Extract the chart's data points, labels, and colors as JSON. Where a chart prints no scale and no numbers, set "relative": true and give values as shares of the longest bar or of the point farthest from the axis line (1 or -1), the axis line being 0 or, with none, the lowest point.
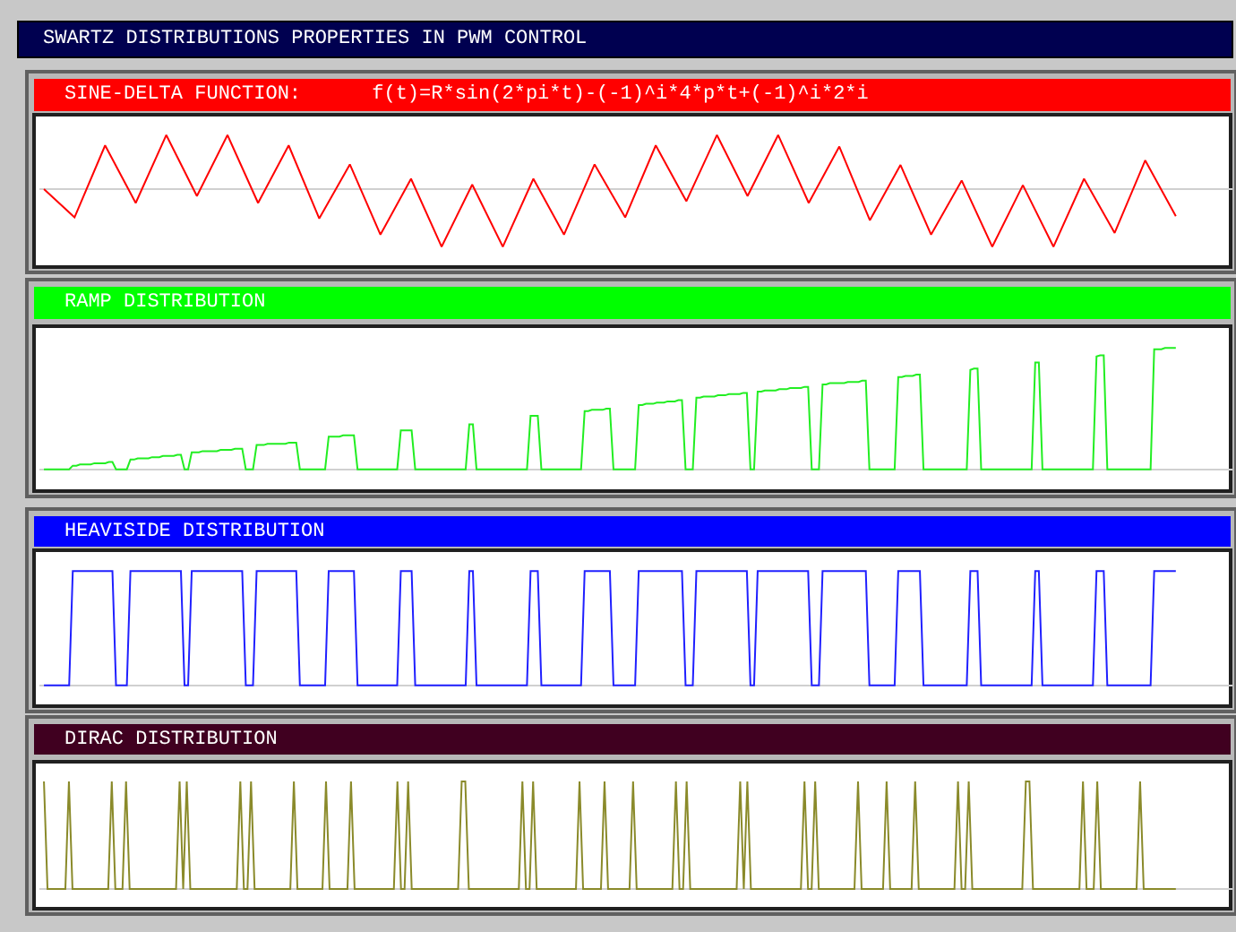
{
  "chart_data": [
    {
      "type": "line",
      "title": "SWARTZ DISTRIBUTIONS PROPERTIES IN PWM CONTROL",
      "subtitle": "SINE-DELTA FUNCTION:      f(t)=R*sin(2*pi*t)-(-1)^i*4*p*t+(-1)^i*2*i",
      "relative": true,
      "categories": [
        null,
        null,
        null,
        null,
        null,
        null,
        null,
        null,
        null,
        null,
        null,
        null,
        null,
        null,
        null,
        null,
        null,
        null,
        null,
        null,
        null,
        null,
        null,
        null,
        null,
        null,
        null,
        null,
        null,
        null,
        null,
        null,
        null,
        null,
        null,
        null,
        null,
        null
      ],
      "series": [
        {
          "color": "#ff0000",
          "values": [
            0,
            -0.49,
            0.76,
            -0.24,
            0.94,
            -0.12,
            0.94,
            -0.24,
            0.76,
            -0.51,
            0.43,
            -0.79,
            0.18,
            -1,
            0.08,
            -1,
            0.18,
            -0.79,
            0.43,
            -0.49,
            0.76,
            -0.21,
            0.94,
            -0.12,
            0.94,
            -0.24,
            0.74,
            -0.54,
            0.42,
            -0.79,
            0.15,
            -1,
            0.07,
            -1,
            0.18,
            -0.76,
            0.5,
            -0.47
          ]
        }
      ]
    },
    {
      "type": "line",
      "title": "RAMP DISTRIBUTION",
      "relative": true,
      "categories": [
        null,
        null,
        null,
        null,
        null,
        null,
        null,
        null,
        null,
        null,
        null,
        null,
        null,
        null,
        null,
        null,
        null,
        null,
        null,
        null,
        null,
        null,
        null,
        null,
        null,
        null,
        null,
        null,
        null,
        null,
        null,
        null,
        null,
        null,
        null,
        null,
        null,
        null,
        null,
        null,
        null,
        null,
        null,
        null,
        null,
        null,
        null,
        null,
        null,
        null,
        null,
        null,
        null,
        null,
        null,
        null,
        null,
        null,
        null,
        null,
        null,
        null,
        null,
        null,
        null,
        null,
        null,
        null,
        null,
        null,
        null,
        null,
        null,
        null,
        null,
        null,
        null,
        null,
        null,
        null,
        null,
        null,
        null,
        null,
        null,
        null,
        null,
        null,
        null,
        null,
        null,
        null,
        null,
        null,
        null,
        null,
        null,
        null,
        null,
        null,
        null,
        null,
        null,
        null,
        null,
        null,
        null,
        null,
        null,
        null,
        null,
        null,
        null,
        null,
        null,
        null,
        null,
        null,
        null,
        null,
        null,
        null,
        null,
        null,
        null,
        null,
        null,
        null,
        null,
        null,
        null,
        null,
        null,
        null,
        null,
        null,
        null,
        null,
        null,
        null,
        null,
        null,
        null,
        null,
        null,
        null,
        null,
        null,
        null,
        null,
        null,
        null,
        null,
        null,
        null,
        null,
        null,
        null,
        null,
        null,
        null,
        null,
        null,
        null,
        null,
        null,
        null,
        null,
        null,
        null,
        null,
        null,
        null,
        null,
        null,
        null,
        null,
        null,
        null,
        null,
        null,
        null,
        null,
        null,
        null,
        null,
        null,
        null,
        null,
        null,
        null,
        null,
        null,
        null,
        null,
        null,
        null,
        null,
        null,
        null,
        null,
        null,
        null,
        null,
        null,
        null,
        null,
        null,
        null,
        null,
        null,
        null,
        null,
        null,
        null,
        null,
        null,
        null,
        null,
        null,
        null,
        null,
        null,
        null,
        null,
        null,
        null,
        null,
        null,
        null,
        null,
        null,
        null,
        null,
        null,
        null,
        null,
        null,
        null,
        null,
        null,
        null,
        null,
        null,
        null,
        null,
        null,
        null,
        null,
        null,
        null,
        null,
        null,
        null,
        null,
        null,
        null,
        null,
        null,
        null,
        null,
        null,
        null,
        null,
        null,
        null,
        null,
        null,
        null,
        null,
        null,
        null,
        null,
        null,
        null,
        null,
        null,
        null,
        null,
        null,
        null,
        null,
        null,
        null,
        null,
        null,
        null,
        null,
        null,
        null,
        null,
        null,
        null,
        null,
        null,
        null,
        null,
        null,
        null,
        null,
        null,
        null,
        null,
        null,
        null,
        null,
        null,
        null,
        null,
        null,
        null,
        null,
        null,
        null,
        null
      ],
      "series": [
        {
          "color": "#22ee22",
          "values": [
            0,
            0,
            0,
            0,
            0,
            0,
            0,
            0,
            0.03,
            0.03,
            0.04,
            0.04,
            0.04,
            0.04,
            0.05,
            0.05,
            0.05,
            0.05,
            0.06,
            0.06,
            0,
            0,
            0,
            0,
            0.08,
            0.08,
            0.09,
            0.09,
            0.09,
            0.09,
            0.1,
            0.1,
            0.1,
            0.11,
            0.11,
            0.11,
            0.11,
            0.12,
            0.12,
            0,
            0,
            0.14,
            0.14,
            0.14,
            0.15,
            0.15,
            0.15,
            0.15,
            0.15,
            0.16,
            0.16,
            0.16,
            0.16,
            0.17,
            0.17,
            0.17,
            0,
            0,
            0,
            0.2,
            0.2,
            0.2,
            0.21,
            0.21,
            0.21,
            0.21,
            0.21,
            0.21,
            0.22,
            0.22,
            0.22,
            0,
            0,
            0,
            0,
            0,
            0,
            0,
            0,
            0.27,
            0.27,
            0.27,
            0.27,
            0.28,
            0.28,
            0.28,
            0.28,
            0,
            0,
            0,
            0,
            0,
            0,
            0,
            0,
            0,
            0,
            0,
            0,
            0.32,
            0.32,
            0.32,
            0.32,
            0,
            0,
            0,
            0,
            0,
            0,
            0,
            0,
            0,
            0,
            0,
            0,
            0,
            0,
            0,
            0.37,
            0.37,
            0,
            0,
            0,
            0,
            0,
            0,
            0,
            0,
            0,
            0,
            0,
            0,
            0,
            0,
            0,
            0.44,
            0.44,
            0.44,
            0,
            0,
            0,
            0,
            0,
            0,
            0,
            0,
            0,
            0,
            0,
            0,
            0.48,
            0.48,
            0.49,
            0.49,
            0.49,
            0.49,
            0.5,
            0.5,
            0,
            0,
            0,
            0,
            0,
            0,
            0,
            0.53,
            0.53,
            0.54,
            0.54,
            0.54,
            0.55,
            0.55,
            0.55,
            0.56,
            0.56,
            0.56,
            0.57,
            0.57,
            0,
            0,
            0,
            0.59,
            0.59,
            0.6,
            0.6,
            0.6,
            0.6,
            0.61,
            0.61,
            0.61,
            0.62,
            0.62,
            0.62,
            0.62,
            0.63,
            0.63,
            0,
            0,
            0.64,
            0.64,
            0.65,
            0.65,
            0.65,
            0.65,
            0.66,
            0.66,
            0.66,
            0.67,
            0.67,
            0.67,
            0.67,
            0.68,
            0.68,
            0,
            0,
            0,
            0.7,
            0.7,
            0.71,
            0.71,
            0.71,
            0.71,
            0.71,
            0.72,
            0.72,
            0.72,
            0.72,
            0.73,
            0.73,
            0,
            0,
            0,
            0,
            0,
            0,
            0,
            0,
            0.76,
            0.76,
            0.77,
            0.77,
            0.77,
            0.78,
            0.78,
            0,
            0,
            0,
            0,
            0,
            0,
            0,
            0,
            0,
            0,
            0,
            0,
            0,
            0.82,
            0.83,
            0.83,
            0,
            0,
            0,
            0,
            0,
            0,
            0,
            0,
            0,
            0,
            0,
            0,
            0,
            0,
            0,
            0.88,
            0.88,
            0,
            0,
            0,
            0,
            0,
            0,
            0,
            0,
            0,
            0,
            0,
            0,
            0,
            0,
            0,
            0.93,
            0.94,
            0.94,
            0,
            0,
            0,
            0,
            0,
            0,
            0,
            0,
            0,
            0,
            0,
            0,
            0,
            0.99,
            0.99,
            0.99,
            1,
            1,
            1,
            1
          ]
        }
      ]
    },
    {
      "type": "line",
      "title": "HEAVISIDE DISTRIBUTION",
      "relative": true,
      "categories": [
        null,
        null,
        null,
        null,
        null,
        null,
        null,
        null,
        null,
        null,
        null,
        null,
        null,
        null,
        null,
        null,
        null,
        null,
        null,
        null,
        null,
        null,
        null,
        null,
        null,
        null,
        null,
        null,
        null,
        null,
        null,
        null,
        null,
        null,
        null,
        null,
        null,
        null,
        null,
        null,
        null,
        null,
        null,
        null,
        null,
        null,
        null,
        null,
        null,
        null,
        null,
        null,
        null,
        null,
        null,
        null,
        null,
        null,
        null,
        null,
        null,
        null,
        null,
        null,
        null,
        null,
        null,
        null,
        null,
        null,
        null,
        null,
        null,
        null,
        null,
        null,
        null,
        null,
        null,
        null,
        null,
        null,
        null,
        null,
        null,
        null,
        null,
        null,
        null,
        null,
        null,
        null,
        null,
        null,
        null,
        null,
        null,
        null,
        null,
        null,
        null,
        null,
        null,
        null,
        null,
        null,
        null,
        null,
        null,
        null,
        null,
        null,
        null,
        null,
        null,
        null,
        null,
        null,
        null,
        null,
        null,
        null,
        null,
        null,
        null,
        null,
        null,
        null,
        null,
        null,
        null,
        null,
        null,
        null,
        null,
        null,
        null,
        null,
        null,
        null,
        null,
        null,
        null,
        null,
        null,
        null,
        null,
        null,
        null,
        null,
        null,
        null,
        null,
        null,
        null,
        null,
        null,
        null,
        null,
        null,
        null,
        null,
        null,
        null,
        null,
        null,
        null,
        null,
        null,
        null,
        null,
        null,
        null,
        null,
        null,
        null,
        null,
        null,
        null,
        null,
        null,
        null,
        null,
        null,
        null,
        null,
        null,
        null,
        null,
        null,
        null,
        null,
        null,
        null,
        null,
        null,
        null,
        null,
        null,
        null,
        null,
        null,
        null,
        null,
        null,
        null,
        null,
        null,
        null,
        null,
        null,
        null,
        null,
        null,
        null,
        null,
        null,
        null,
        null,
        null,
        null,
        null,
        null,
        null,
        null,
        null,
        null,
        null,
        null,
        null,
        null,
        null,
        null,
        null,
        null,
        null,
        null,
        null,
        null,
        null,
        null,
        null,
        null,
        null,
        null,
        null,
        null,
        null,
        null,
        null,
        null,
        null,
        null,
        null,
        null,
        null,
        null,
        null,
        null,
        null,
        null,
        null,
        null,
        null,
        null,
        null,
        null,
        null,
        null,
        null,
        null,
        null,
        null,
        null,
        null,
        null,
        null,
        null,
        null,
        null,
        null,
        null,
        null,
        null,
        null,
        null,
        null,
        null,
        null,
        null,
        null,
        null,
        null,
        null,
        null,
        null,
        null,
        null,
        null,
        null,
        null,
        null,
        null,
        null,
        null,
        null,
        null,
        null,
        null,
        null,
        null,
        null,
        null,
        null,
        null
      ],
      "series": [
        {
          "color": "#2020ff",
          "values": [
            0,
            0,
            0,
            0,
            0,
            0,
            0,
            0,
            1,
            1,
            1,
            1,
            1,
            1,
            1,
            1,
            1,
            1,
            1,
            1,
            0,
            0,
            0,
            0,
            1,
            1,
            1,
            1,
            1,
            1,
            1,
            1,
            1,
            1,
            1,
            1,
            1,
            1,
            1,
            0,
            0,
            1,
            1,
            1,
            1,
            1,
            1,
            1,
            1,
            1,
            1,
            1,
            1,
            1,
            1,
            1,
            0,
            0,
            0,
            1,
            1,
            1,
            1,
            1,
            1,
            1,
            1,
            1,
            1,
            1,
            1,
            0,
            0,
            0,
            0,
            0,
            0,
            0,
            0,
            1,
            1,
            1,
            1,
            1,
            1,
            1,
            1,
            0,
            0,
            0,
            0,
            0,
            0,
            0,
            0,
            0,
            0,
            0,
            0,
            1,
            1,
            1,
            1,
            0,
            0,
            0,
            0,
            0,
            0,
            0,
            0,
            0,
            0,
            0,
            0,
            0,
            0,
            0,
            1,
            1,
            0,
            0,
            0,
            0,
            0,
            0,
            0,
            0,
            0,
            0,
            0,
            0,
            0,
            0,
            0,
            1,
            1,
            1,
            0,
            0,
            0,
            0,
            0,
            0,
            0,
            0,
            0,
            0,
            0,
            0,
            1,
            1,
            1,
            1,
            1,
            1,
            1,
            1,
            0,
            0,
            0,
            0,
            0,
            0,
            0,
            1,
            1,
            1,
            1,
            1,
            1,
            1,
            1,
            1,
            1,
            1,
            1,
            1,
            0,
            0,
            0,
            1,
            1,
            1,
            1,
            1,
            1,
            1,
            1,
            1,
            1,
            1,
            1,
            1,
            1,
            1,
            0,
            0,
            1,
            1,
            1,
            1,
            1,
            1,
            1,
            1,
            1,
            1,
            1,
            1,
            1,
            1,
            1,
            0,
            0,
            0,
            1,
            1,
            1,
            1,
            1,
            1,
            1,
            1,
            1,
            1,
            1,
            1,
            1,
            0,
            0,
            0,
            0,
            0,
            0,
            0,
            0,
            1,
            1,
            1,
            1,
            1,
            1,
            1,
            0,
            0,
            0,
            0,
            0,
            0,
            0,
            0,
            0,
            0,
            0,
            0,
            0,
            1,
            1,
            1,
            0,
            0,
            0,
            0,
            0,
            0,
            0,
            0,
            0,
            0,
            0,
            0,
            0,
            0,
            0,
            1,
            1,
            0,
            0,
            0,
            0,
            0,
            0,
            0,
            0,
            0,
            0,
            0,
            0,
            0,
            0,
            0,
            1,
            1,
            1,
            0,
            0,
            0,
            0,
            0,
            0,
            0,
            0,
            0,
            0,
            0,
            0,
            0,
            1,
            1,
            1,
            1,
            1,
            1,
            1
          ]
        }
      ]
    },
    {
      "type": "line",
      "title": "DIRAC DISTRIBUTION",
      "relative": true,
      "categories": [
        null,
        null,
        null,
        null,
        null,
        null,
        null,
        null,
        null,
        null,
        null,
        null,
        null,
        null,
        null,
        null,
        null,
        null,
        null,
        null,
        null,
        null,
        null,
        null,
        null,
        null,
        null,
        null,
        null,
        null,
        null,
        null,
        null,
        null,
        null,
        null,
        null,
        null,
        null,
        null,
        null,
        null,
        null,
        null,
        null,
        null,
        null,
        null,
        null,
        null,
        null,
        null,
        null,
        null,
        null,
        null,
        null,
        null,
        null,
        null,
        null,
        null,
        null,
        null,
        null,
        null,
        null,
        null,
        null,
        null,
        null,
        null,
        null,
        null,
        null,
        null,
        null,
        null,
        null,
        null,
        null,
        null,
        null,
        null,
        null,
        null,
        null,
        null,
        null,
        null,
        null,
        null,
        null,
        null,
        null,
        null,
        null,
        null,
        null,
        null,
        null,
        null,
        null,
        null,
        null,
        null,
        null,
        null,
        null,
        null,
        null,
        null,
        null,
        null,
        null,
        null,
        null,
        null,
        null,
        null,
        null,
        null,
        null,
        null,
        null,
        null,
        null,
        null,
        null,
        null,
        null,
        null,
        null,
        null,
        null,
        null,
        null,
        null,
        null,
        null,
        null,
        null,
        null,
        null,
        null,
        null,
        null,
        null,
        null,
        null,
        null,
        null,
        null,
        null,
        null,
        null,
        null,
        null,
        null,
        null,
        null,
        null,
        null,
        null,
        null,
        null,
        null,
        null,
        null,
        null,
        null,
        null,
        null,
        null,
        null,
        null,
        null,
        null,
        null,
        null,
        null,
        null,
        null,
        null,
        null,
        null,
        null,
        null,
        null,
        null,
        null,
        null,
        null,
        null,
        null,
        null,
        null,
        null,
        null,
        null,
        null,
        null,
        null,
        null,
        null,
        null,
        null,
        null,
        null,
        null,
        null,
        null,
        null,
        null,
        null,
        null,
        null,
        null,
        null,
        null,
        null,
        null,
        null,
        null,
        null,
        null,
        null,
        null,
        null,
        null,
        null,
        null,
        null,
        null,
        null,
        null,
        null,
        null,
        null,
        null,
        null,
        null,
        null,
        null,
        null,
        null,
        null,
        null,
        null,
        null,
        null,
        null,
        null,
        null,
        null,
        null,
        null,
        null,
        null,
        null,
        null,
        null,
        null,
        null,
        null,
        null,
        null,
        null,
        null,
        null,
        null,
        null,
        null,
        null,
        null,
        null,
        null,
        null,
        null,
        null,
        null,
        null,
        null,
        null,
        null,
        null,
        null,
        null,
        null,
        null,
        null,
        null,
        null,
        null,
        null,
        null,
        null,
        null,
        null,
        null,
        null,
        null,
        null,
        null,
        null,
        null,
        null,
        null,
        null,
        null,
        null,
        null,
        null,
        null,
        null,
        null,
        null,
        null
      ],
      "series": [
        {
          "color": "#8a8a2a",
          "values": [
            1,
            0,
            0,
            0,
            0,
            0,
            0,
            1,
            0,
            0,
            0,
            0,
            0,
            0,
            0,
            0,
            0,
            0,
            0,
            1,
            0,
            0,
            0,
            1,
            0,
            0,
            0,
            0,
            0,
            0,
            0,
            0,
            0,
            0,
            0,
            0,
            0,
            0,
            1,
            0,
            1,
            0,
            0,
            0,
            0,
            0,
            0,
            0,
            0,
            0,
            0,
            0,
            0,
            0,
            0,
            1,
            0,
            0,
            1,
            0,
            0,
            0,
            0,
            0,
            0,
            0,
            0,
            0,
            0,
            0,
            1,
            0,
            0,
            0,
            0,
            0,
            0,
            0,
            0,
            1,
            0,
            0,
            0,
            0,
            0,
            0,
            1,
            0,
            0,
            0,
            0,
            0,
            0,
            0,
            0,
            0,
            0,
            0,
            0,
            1,
            0,
            0,
            1,
            0,
            0,
            0,
            0,
            0,
            0,
            0,
            0,
            0,
            0,
            0,
            0,
            0,
            0,
            1,
            1,
            0,
            0,
            0,
            0,
            0,
            0,
            0,
            0,
            0,
            0,
            0,
            0,
            0,
            0,
            0,
            1,
            0,
            0,
            1,
            0,
            0,
            0,
            0,
            0,
            0,
            0,
            0,
            0,
            0,
            0,
            0,
            1,
            0,
            0,
            0,
            0,
            0,
            0,
            1,
            0,
            0,
            0,
            0,
            0,
            0,
            0,
            1,
            0,
            0,
            0,
            0,
            0,
            0,
            0,
            0,
            0,
            0,
            0,
            1,
            0,
            0,
            1,
            0,
            0,
            0,
            0,
            0,
            0,
            0,
            0,
            0,
            0,
            0,
            0,
            0,
            0,
            1,
            0,
            1,
            0,
            0,
            0,
            0,
            0,
            0,
            0,
            0,
            0,
            0,
            0,
            0,
            0,
            0,
            0,
            1,
            0,
            0,
            1,
            0,
            0,
            0,
            0,
            0,
            0,
            0,
            0,
            0,
            0,
            0,
            1,
            0,
            0,
            0,
            0,
            0,
            0,
            0,
            1,
            0,
            0,
            0,
            0,
            0,
            0,
            0,
            1,
            0,
            0,
            0,
            0,
            0,
            0,
            0,
            0,
            0,
            0,
            0,
            1,
            0,
            0,
            1,
            0,
            0,
            0,
            0,
            0,
            0,
            0,
            0,
            0,
            0,
            0,
            0,
            0,
            0,
            0,
            1,
            1,
            0,
            0,
            0,
            0,
            0,
            0,
            0,
            0,
            0,
            0,
            0,
            0,
            0,
            0,
            1,
            0,
            0,
            0,
            1,
            0,
            0,
            0,
            0,
            0,
            0,
            0,
            0,
            0,
            0,
            0,
            1,
            0,
            0,
            0,
            0,
            0,
            0,
            0,
            0,
            0,
            0
          ]
        }
      ]
    }
  ]
}
